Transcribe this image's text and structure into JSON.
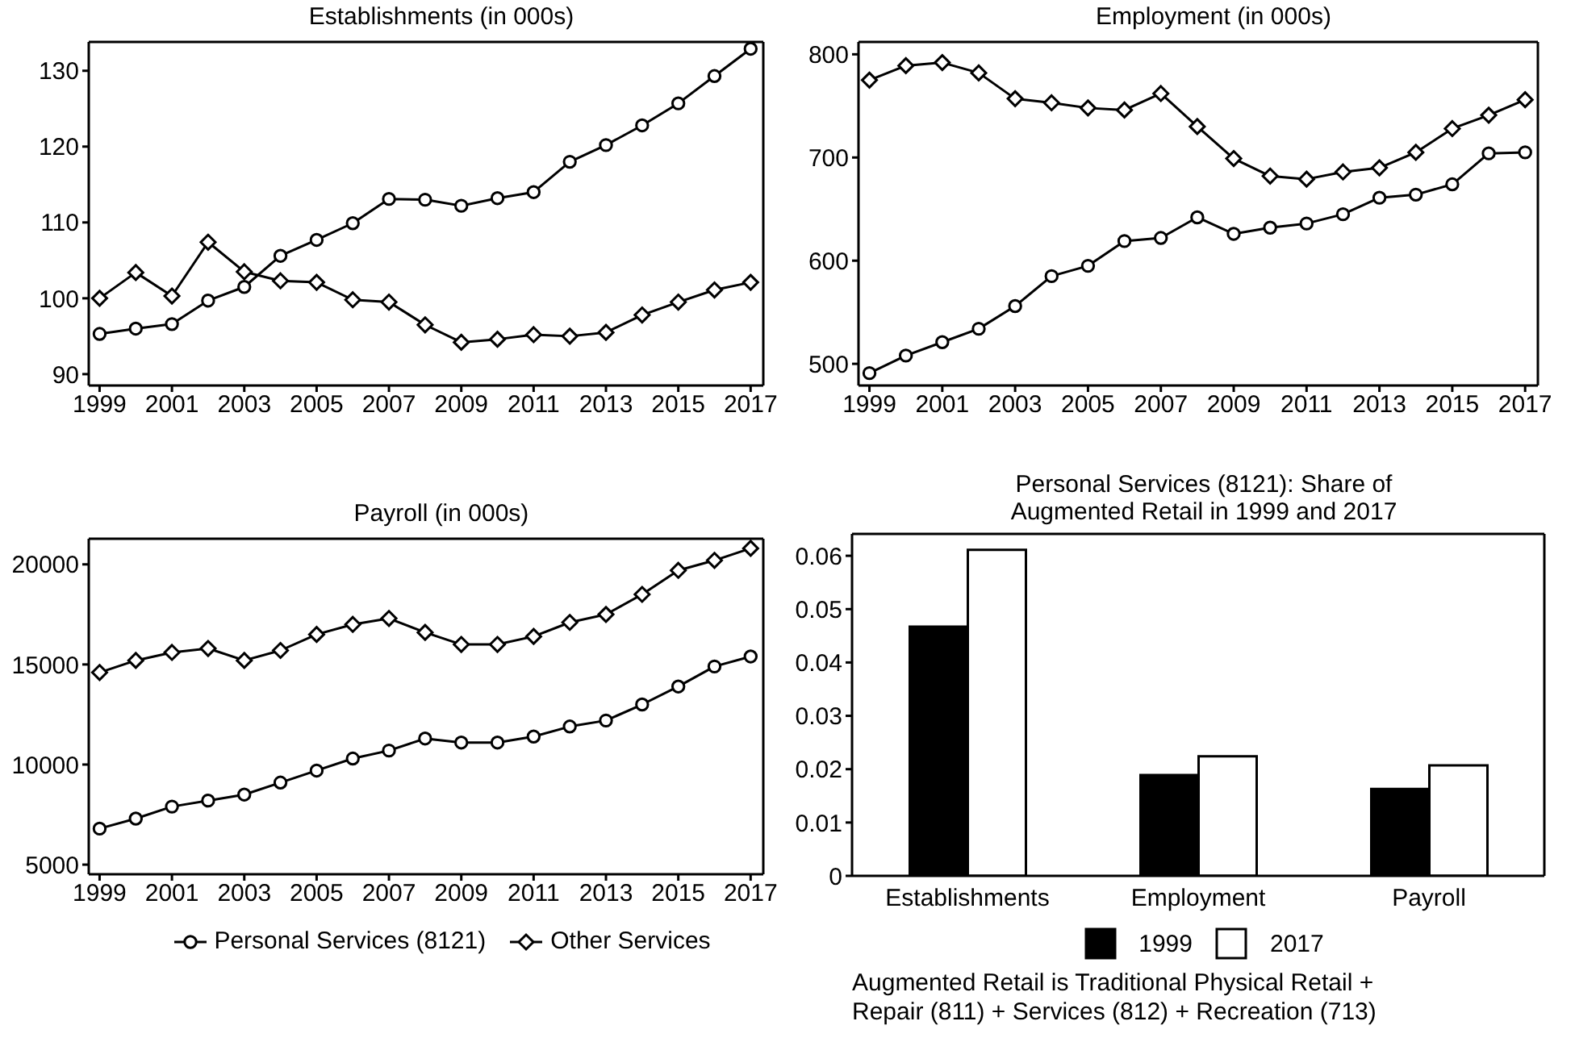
{
  "chart_data": [
    {
      "type": "line",
      "title": "Establishments (in 000s)",
      "x": [
        1999,
        2000,
        2001,
        2002,
        2003,
        2004,
        2005,
        2006,
        2007,
        2008,
        2009,
        2010,
        2011,
        2012,
        2013,
        2014,
        2015,
        2016,
        2017
      ],
      "xlim": [
        1998.7,
        2017.35
      ],
      "xticks": [
        1999,
        2001,
        2003,
        2005,
        2007,
        2009,
        2011,
        2013,
        2015,
        2017
      ],
      "ylim": [
        88.5,
        133.8
      ],
      "yticks": [
        90,
        100,
        110,
        120,
        130
      ],
      "series": [
        {
          "color": "#000000",
          "marker": "circle",
          "values": [
            95.3,
            96.0,
            96.6,
            99.7,
            101.5,
            105.6,
            107.7,
            109.9,
            113.1,
            113.0,
            112.2,
            113.2,
            114.0,
            118.0,
            120.2,
            122.8,
            125.7,
            129.3,
            132.9
          ]
        },
        {
          "color": "#000000",
          "marker": "diamond",
          "values": [
            100.0,
            103.4,
            100.3,
            107.4,
            103.5,
            102.3,
            102.1,
            99.8,
            99.5,
            96.5,
            94.2,
            94.6,
            95.2,
            95.0,
            95.5,
            97.8,
            99.5,
            101.1,
            102.1
          ]
        }
      ]
    },
    {
      "type": "line",
      "title": "Employment (in 000s)",
      "x": [
        1999,
        2000,
        2001,
        2002,
        2003,
        2004,
        2005,
        2006,
        2007,
        2008,
        2009,
        2010,
        2011,
        2012,
        2013,
        2014,
        2015,
        2016,
        2017
      ],
      "xlim": [
        1998.7,
        2017.35
      ],
      "xticks": [
        1999,
        2001,
        2003,
        2005,
        2007,
        2009,
        2011,
        2013,
        2015,
        2017
      ],
      "ylim": [
        479,
        812
      ],
      "yticks": [
        500,
        600,
        700,
        800
      ],
      "series": [
        {
          "color": "#000000",
          "marker": "circle",
          "values": [
            491,
            508,
            521,
            534,
            556,
            585,
            595,
            619,
            622,
            642,
            626,
            632,
            636,
            645,
            661,
            664,
            674,
            704,
            705
          ]
        },
        {
          "color": "#000000",
          "marker": "diamond",
          "values": [
            775,
            789,
            792,
            782,
            757,
            753,
            748,
            746,
            762,
            730,
            699,
            682,
            679,
            686,
            690,
            705,
            728,
            741,
            756
          ]
        }
      ]
    },
    {
      "type": "line",
      "title": "Payroll (in 000s)",
      "x": [
        1999,
        2000,
        2001,
        2002,
        2003,
        2004,
        2005,
        2006,
        2007,
        2008,
        2009,
        2010,
        2011,
        2012,
        2013,
        2014,
        2015,
        2016,
        2017
      ],
      "xlim": [
        1998.7,
        2017.35
      ],
      "xticks": [
        1999,
        2001,
        2003,
        2005,
        2007,
        2009,
        2011,
        2013,
        2015,
        2017
      ],
      "ylim": [
        4520,
        21280
      ],
      "yticks": [
        5000,
        10000,
        15000,
        20000
      ],
      "legend": "bottom",
      "series": [
        {
          "name": "Personal Services (8121)",
          "color": "#000000",
          "marker": "circle",
          "values": [
            6800,
            7300,
            7900,
            8200,
            8500,
            9100,
            9700,
            10300,
            10700,
            11300,
            11100,
            11100,
            11400,
            11900,
            12200,
            13000,
            13900,
            14900,
            15400
          ]
        },
        {
          "name": "Other Services",
          "color": "#000000",
          "marker": "diamond",
          "values": [
            14600,
            15200,
            15600,
            15800,
            15200,
            15700,
            16500,
            17000,
            17300,
            16600,
            16000,
            16000,
            16400,
            17100,
            17500,
            18500,
            19700,
            20200,
            20800
          ]
        }
      ]
    },
    {
      "type": "bar",
      "title": "Personal Services (8121): Share of\nAugmented Retail in 1999 and 2017",
      "categories": [
        "Establishments",
        "Employment",
        "Payroll"
      ],
      "ylim": [
        0,
        0.0641
      ],
      "yticks": [
        0,
        0.01,
        0.02,
        0.03,
        0.04,
        0.05,
        0.06
      ],
      "legend": "bottom",
      "annotations": [
        "Augmented Retail is Traditional Physical Retail +\nRepair (811) + Services (812) + Recreation (713)"
      ],
      "series": [
        {
          "name": "1999",
          "color": "#000000",
          "values": [
            0.0467,
            0.0189,
            0.0163
          ]
        },
        {
          "name": "2017",
          "color": "#ffffff",
          "values": [
            0.0611,
            0.0224,
            0.0207
          ]
        }
      ]
    }
  ]
}
